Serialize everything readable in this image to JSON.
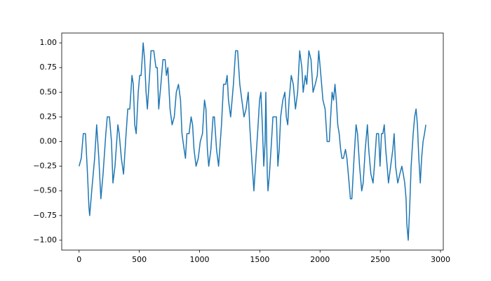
{
  "chart_data": {
    "type": "line",
    "x": [
      0,
      18,
      35,
      53,
      70,
      82,
      88,
      105,
      129,
      146,
      164,
      181,
      199,
      222,
      234,
      252,
      269,
      281,
      298,
      322,
      333,
      351,
      369,
      386,
      404,
      421,
      439,
      450,
      462,
      474,
      491,
      503,
      515,
      532,
      544,
      556,
      567,
      585,
      597,
      620,
      638,
      649,
      661,
      679,
      696,
      714,
      725,
      737,
      755,
      772,
      790,
      807,
      825,
      842,
      854,
      872,
      883,
      895,
      913,
      930,
      942,
      954,
      971,
      989,
      1006,
      1024,
      1041,
      1053,
      1065,
      1076,
      1094,
      1112,
      1123,
      1141,
      1158,
      1182,
      1199,
      1217,
      1229,
      1240,
      1258,
      1281,
      1299,
      1316,
      1334,
      1351,
      1369,
      1386,
      1404,
      1416,
      1433,
      1451,
      1468,
      1486,
      1498,
      1509,
      1521,
      1533,
      1544,
      1550,
      1562,
      1568,
      1580,
      1597,
      1609,
      1638,
      1650,
      1661,
      1673,
      1691,
      1708,
      1720,
      1732,
      1743,
      1761,
      1778,
      1796,
      1814,
      1831,
      1849,
      1860,
      1878,
      1890,
      1907,
      1925,
      1942,
      1960,
      1977,
      1989,
      2007,
      2024,
      2042,
      2059,
      2077,
      2088,
      2100,
      2112,
      2124,
      2135,
      2147,
      2159,
      2171,
      2182,
      2194,
      2211,
      2223,
      2241,
      2252,
      2264,
      2282,
      2299,
      2311,
      2328,
      2346,
      2358,
      2375,
      2393,
      2404,
      2422,
      2440,
      2451,
      2469,
      2486,
      2498,
      2510,
      2521,
      2533,
      2545,
      2557,
      2568,
      2586,
      2604,
      2615,
      2627,
      2645,
      2662,
      2679,
      2691,
      2703,
      2714,
      2720,
      2732,
      2744,
      2756,
      2773,
      2785,
      2797,
      2808,
      2820,
      2832,
      2843,
      2855,
      2867,
      2878
    ],
    "series": [
      {
        "color": "#1f77b4",
        "values": [
          -0.25,
          -0.17,
          0.08,
          0.08,
          -0.33,
          -0.67,
          -0.75,
          -0.5,
          -0.17,
          0.17,
          -0.17,
          -0.58,
          -0.33,
          0.08,
          0.25,
          0.25,
          0.0,
          -0.42,
          -0.25,
          0.17,
          0.08,
          -0.17,
          -0.33,
          0.0,
          0.33,
          0.33,
          0.67,
          0.58,
          0.17,
          0.08,
          0.5,
          0.67,
          0.67,
          1.0,
          0.83,
          0.5,
          0.33,
          0.67,
          0.92,
          0.92,
          0.75,
          0.75,
          0.33,
          0.58,
          0.83,
          0.83,
          0.67,
          0.75,
          0.33,
          0.17,
          0.25,
          0.5,
          0.58,
          0.42,
          0.08,
          -0.08,
          -0.17,
          0.08,
          0.08,
          0.25,
          0.17,
          -0.08,
          -0.25,
          -0.17,
          0.0,
          0.08,
          0.42,
          0.33,
          -0.08,
          -0.25,
          -0.08,
          0.25,
          0.25,
          -0.08,
          -0.25,
          0.17,
          0.58,
          0.58,
          0.67,
          0.42,
          0.25,
          0.58,
          0.92,
          0.92,
          0.58,
          0.42,
          0.25,
          0.33,
          0.5,
          0.17,
          -0.17,
          -0.5,
          -0.17,
          0.17,
          0.42,
          0.5,
          0.17,
          -0.25,
          0.0,
          0.5,
          -0.33,
          -0.5,
          -0.33,
          0.0,
          0.25,
          0.25,
          -0.25,
          -0.08,
          0.25,
          0.42,
          0.5,
          0.25,
          0.17,
          0.42,
          0.67,
          0.58,
          0.33,
          0.5,
          0.92,
          0.75,
          0.5,
          0.67,
          0.58,
          0.92,
          0.83,
          0.5,
          0.58,
          0.67,
          0.92,
          0.67,
          0.42,
          0.33,
          0.0,
          0.0,
          0.25,
          0.5,
          0.42,
          0.58,
          0.42,
          0.17,
          0.08,
          -0.08,
          -0.17,
          -0.17,
          -0.08,
          -0.17,
          -0.42,
          -0.58,
          -0.58,
          -0.17,
          0.17,
          0.08,
          -0.25,
          -0.5,
          -0.42,
          -0.08,
          0.17,
          -0.08,
          -0.33,
          -0.42,
          -0.25,
          0.08,
          0.08,
          -0.25,
          0.08,
          0.08,
          0.17,
          -0.08,
          -0.25,
          -0.42,
          -0.25,
          -0.08,
          0.08,
          -0.25,
          -0.42,
          -0.33,
          -0.25,
          -0.33,
          -0.42,
          -0.58,
          -0.83,
          -1.0,
          -0.67,
          -0.25,
          0.08,
          0.25,
          0.33,
          0.17,
          -0.17,
          -0.42,
          -0.17,
          0.0,
          0.08,
          0.17
        ]
      }
    ],
    "xlim": [
      -144,
      3023
    ],
    "ylim": [
      -1.1,
      1.1
    ],
    "xticks": [
      0,
      500,
      1000,
      1500,
      2000,
      2500,
      3000
    ],
    "yticks": [
      {
        "value": -1,
        "label": "−1.00"
      },
      {
        "value": -0.75,
        "label": "−0.75"
      },
      {
        "value": -0.5,
        "label": "−0.50"
      },
      {
        "value": -0.25,
        "label": "−0.25"
      },
      {
        "value": 0,
        "label": "0.00"
      },
      {
        "value": 0.25,
        "label": "0.25"
      },
      {
        "value": 0.5,
        "label": "0.50"
      },
      {
        "value": 0.75,
        "label": "0.75"
      },
      {
        "value": 1,
        "label": "1.00"
      }
    ],
    "grid": false
  }
}
